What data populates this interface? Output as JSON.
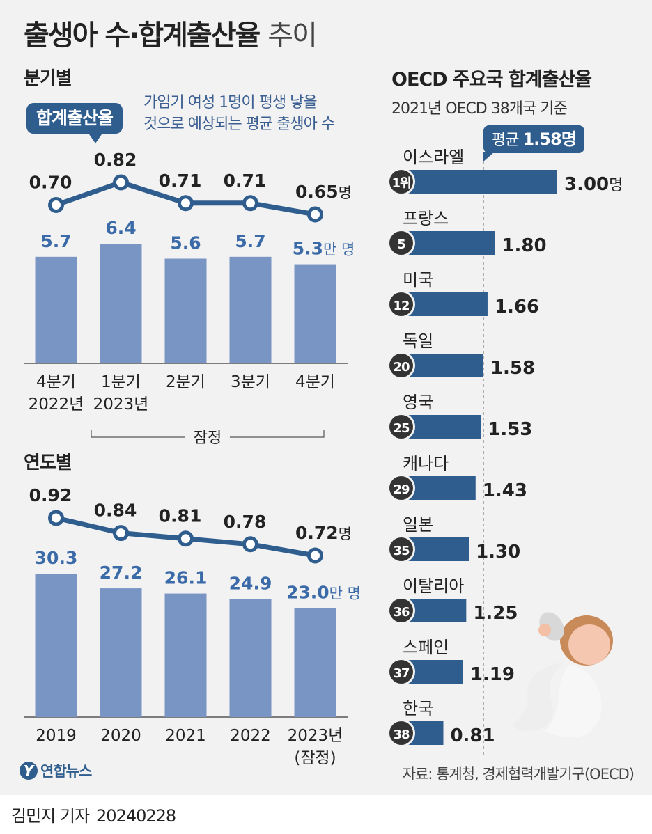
{
  "header": {
    "title_main": "출생아 수·합계출산율",
    "title_suffix": "추이"
  },
  "quarterly": {
    "section_title": "분기별",
    "badge_label": "합계출산율",
    "description_line1": "가임기 여성 1명이 평생 낳을",
    "description_line2": "것으로 예상되는 평균 출생아 수",
    "bracket_label": "잠정"
  },
  "annual": {
    "section_title": "연도별"
  },
  "oecd": {
    "title": "OECD 주요국 합계출산율",
    "subtitle": "2021년 OECD 38개국 기준",
    "avg_label": "평균",
    "avg_value": "1.58명"
  },
  "footer": {
    "logo_text": "연합뉴스",
    "logo_glyph": "Y",
    "source": "자료: 통계청, 경제협력개발기구(OECD)",
    "reporter": "김민지 기자",
    "date": "20240228"
  },
  "colors": {
    "bar": "#7895c3",
    "dark_bar": "#2f5d8e",
    "line": "#2f5d8e",
    "rank_circle": "#333333",
    "births_text": "#3b6aa8"
  },
  "chart_data": [
    {
      "id": "quarterly",
      "type": "bar",
      "title": "분기별",
      "categories": [
        "4분기",
        "1분기",
        "2분기",
        "3분기",
        "4분기"
      ],
      "category_years": [
        "2022년",
        "2023년",
        "",
        "",
        ""
      ],
      "series": [
        {
          "name": "출생아 수",
          "unit": "만 명",
          "values": [
            5.7,
            6.4,
            5.6,
            5.7,
            5.3
          ],
          "labels": [
            "5.7",
            "6.4",
            "5.6",
            "5.7",
            "5.3"
          ]
        },
        {
          "name": "합계출산율",
          "type": "line",
          "unit": "명",
          "values": [
            0.7,
            0.82,
            0.71,
            0.71,
            0.65
          ],
          "labels": [
            "0.70",
            "0.82",
            "0.71",
            "0.71",
            "0.65"
          ]
        }
      ],
      "bar_ylim": [
        0,
        6.4
      ],
      "line_ylim": [
        0.65,
        0.82
      ]
    },
    {
      "id": "annual",
      "type": "bar",
      "title": "연도별",
      "categories": [
        "2019",
        "2020",
        "2021",
        "2022",
        "2023년"
      ],
      "category_notes": [
        "",
        "",
        "",
        "",
        "(잠정)"
      ],
      "series": [
        {
          "name": "출생아 수",
          "unit": "만 명",
          "values": [
            30.3,
            27.2,
            26.1,
            24.9,
            23.0
          ],
          "labels": [
            "30.3",
            "27.2",
            "26.1",
            "24.9",
            "23.0"
          ]
        },
        {
          "name": "합계출산율",
          "type": "line",
          "unit": "명",
          "values": [
            0.92,
            0.84,
            0.81,
            0.78,
            0.72
          ],
          "labels": [
            "0.92",
            "0.84",
            "0.81",
            "0.78",
            "0.72"
          ]
        }
      ],
      "bar_ylim": [
        0,
        30.3
      ],
      "line_ylim": [
        0.72,
        0.92
      ]
    },
    {
      "id": "oecd",
      "type": "bar",
      "orientation": "horizontal",
      "title": "OECD 주요국 합계출산율",
      "categories": [
        "이스라엘",
        "프랑스",
        "미국",
        "독일",
        "영국",
        "캐나다",
        "일본",
        "이탈리아",
        "스페인",
        "한국"
      ],
      "ranks": [
        "1위",
        "5",
        "12",
        "20",
        "25",
        "29",
        "35",
        "36",
        "37",
        "38"
      ],
      "values": [
        3.0,
        1.8,
        1.66,
        1.58,
        1.53,
        1.43,
        1.3,
        1.25,
        1.19,
        0.81
      ],
      "value_labels": [
        "3.00",
        "1.80",
        "1.66",
        "1.58",
        "1.53",
        "1.43",
        "1.30",
        "1.25",
        "1.19",
        "0.81"
      ],
      "first_value_unit": "명",
      "average": 1.58,
      "xlim": [
        0,
        3.0
      ]
    }
  ]
}
